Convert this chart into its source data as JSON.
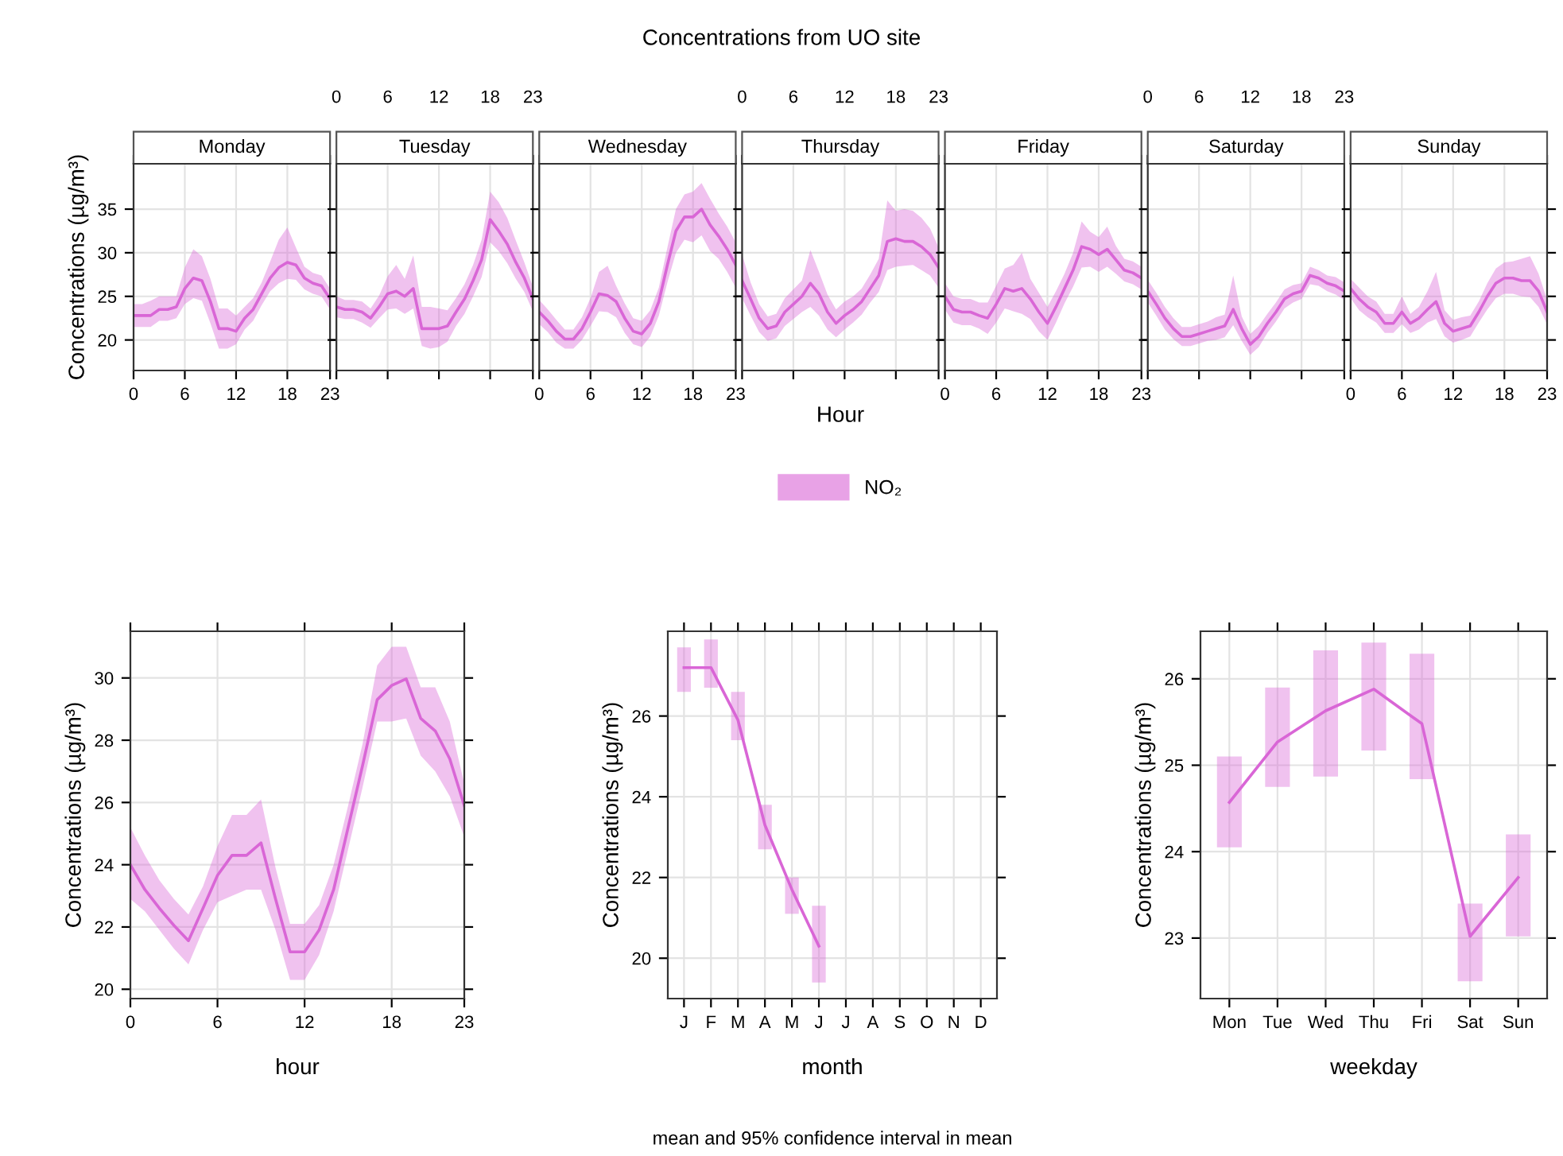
{
  "chart_data": [
    {
      "type": "line",
      "title": "Monday",
      "ylabel": "Concentrations (µg/m³)",
      "xlim": [
        0,
        23
      ],
      "xticks": [
        0,
        6,
        12,
        18,
        23
      ],
      "ylim": [
        16.5,
        40.2
      ],
      "yticks": [
        20,
        25,
        30,
        35
      ],
      "grid": true,
      "x": [
        0,
        1,
        2,
        3,
        4,
        5,
        6,
        7,
        8,
        9,
        10,
        11,
        12,
        13,
        14,
        15,
        16,
        17,
        18,
        19,
        20,
        21,
        22,
        23
      ],
      "series": [
        {
          "color": "#d966d6",
          "values": [
            22.8,
            22.8,
            22.8,
            23.5,
            23.5,
            23.8,
            25.9,
            27.1,
            26.8,
            24.4,
            21.3,
            21.3,
            21.0,
            22.5,
            23.5,
            25.3,
            27.1,
            28.3,
            28.9,
            28.6,
            27.1,
            26.5,
            26.2,
            24.7
          ],
          "lower": [
            21.5,
            21.5,
            21.5,
            22.2,
            22.2,
            22.5,
            24.1,
            24.8,
            24.5,
            21.9,
            19.0,
            19.0,
            19.5,
            21.2,
            22.2,
            24.0,
            25.6,
            26.5,
            27.0,
            26.9,
            25.8,
            25.3,
            25.0,
            23.5
          ],
          "upper": [
            24.1,
            24.1,
            24.5,
            25.0,
            25.0,
            25.0,
            28.3,
            30.4,
            29.6,
            27.0,
            23.6,
            23.6,
            22.8,
            23.8,
            24.8,
            26.6,
            29.0,
            31.5,
            32.9,
            30.6,
            28.4,
            27.7,
            27.4,
            25.9
          ]
        }
      ]
    },
    {
      "type": "line",
      "title": "Tuesday",
      "xlim": [
        0,
        23
      ],
      "xticks": [
        0,
        6,
        12,
        18,
        23
      ],
      "x2lim": [
        0,
        23
      ],
      "x2ticks": [
        0,
        6,
        12,
        18,
        23
      ],
      "tick_labels": false,
      "ylim": [
        16.5,
        40.2
      ],
      "yticks": [
        20,
        25,
        30,
        35
      ],
      "grid": true,
      "x": [
        0,
        1,
        2,
        3,
        4,
        5,
        6,
        7,
        8,
        9,
        10,
        11,
        12,
        13,
        14,
        15,
        16,
        17,
        18,
        19,
        20,
        21,
        22,
        23
      ],
      "series": [
        {
          "color": "#d966d6",
          "values": [
            23.8,
            23.5,
            23.5,
            23.2,
            22.5,
            23.8,
            25.3,
            25.6,
            25.0,
            25.9,
            21.3,
            21.3,
            21.3,
            21.6,
            23.2,
            24.7,
            26.8,
            29.2,
            33.8,
            32.5,
            31.0,
            28.9,
            27.1,
            24.7
          ],
          "lower": [
            22.6,
            22.4,
            22.4,
            22.0,
            21.4,
            22.5,
            23.5,
            23.6,
            23.0,
            23.6,
            19.3,
            19.0,
            19.2,
            19.8,
            21.6,
            23.0,
            25.0,
            27.2,
            31.2,
            30.2,
            28.8,
            27.0,
            25.5,
            23.3
          ],
          "upper": [
            25.0,
            24.6,
            24.6,
            24.4,
            23.6,
            25.1,
            27.3,
            28.6,
            27.0,
            29.7,
            23.8,
            23.8,
            23.6,
            23.4,
            24.8,
            26.4,
            28.6,
            31.5,
            37.0,
            35.8,
            34.0,
            31.4,
            28.9,
            26.1
          ]
        }
      ]
    },
    {
      "type": "line",
      "title": "Wednesday",
      "xlim": [
        0,
        23
      ],
      "xticks": [
        0,
        6,
        12,
        18,
        23
      ],
      "tick_labels": "x",
      "ylim": [
        16.5,
        40.2
      ],
      "yticks": [
        20,
        25,
        30,
        35
      ],
      "grid": true,
      "x": [
        0,
        1,
        2,
        3,
        4,
        5,
        6,
        7,
        8,
        9,
        10,
        11,
        12,
        13,
        14,
        15,
        16,
        17,
        18,
        19,
        20,
        21,
        22,
        23
      ],
      "series": [
        {
          "color": "#d966d6",
          "values": [
            23.2,
            22.2,
            21.0,
            20.1,
            20.1,
            21.3,
            23.2,
            25.3,
            25.1,
            24.4,
            22.5,
            21.0,
            20.7,
            21.9,
            24.4,
            28.6,
            32.5,
            34.1,
            34.1,
            35.0,
            33.2,
            31.9,
            30.4,
            28.6
          ],
          "lower": [
            21.8,
            20.9,
            19.7,
            19.0,
            19.0,
            20.0,
            21.6,
            23.3,
            23.2,
            22.6,
            20.8,
            19.5,
            19.2,
            20.4,
            22.8,
            26.6,
            30.0,
            31.5,
            31.2,
            32.0,
            30.2,
            29.3,
            27.8,
            26.0
          ],
          "upper": [
            24.6,
            23.5,
            22.3,
            21.2,
            21.2,
            22.6,
            24.8,
            27.8,
            28.5,
            26.2,
            24.2,
            22.5,
            22.2,
            23.4,
            26.0,
            30.6,
            35.0,
            36.7,
            37.0,
            38.0,
            36.2,
            34.5,
            33.0,
            31.2
          ]
        }
      ]
    },
    {
      "type": "line",
      "title": "Thursday",
      "xlabel": "Hour",
      "legend": "bottom",
      "annotations": [
        "Concentrations from UO site"
      ],
      "xlim": [
        0,
        23
      ],
      "xticks": [
        0,
        6,
        12,
        18,
        23
      ],
      "x2lim": [
        0,
        23
      ],
      "x2ticks": [
        0,
        6,
        12,
        18,
        23
      ],
      "tick_labels": false,
      "ylim": [
        16.5,
        40.2
      ],
      "yticks": [
        20,
        25,
        30,
        35
      ],
      "grid": true,
      "x": [
        0,
        1,
        2,
        3,
        4,
        5,
        6,
        7,
        8,
        9,
        10,
        11,
        12,
        13,
        14,
        15,
        16,
        17,
        18,
        19,
        20,
        21,
        22,
        23
      ],
      "series": [
        {
          "name": "NO₂",
          "color": "#d966d6",
          "values": [
            26.8,
            24.7,
            22.5,
            21.3,
            21.6,
            23.2,
            24.1,
            25.0,
            26.5,
            25.3,
            23.2,
            21.9,
            22.8,
            23.5,
            24.4,
            25.9,
            27.4,
            31.3,
            31.6,
            31.3,
            31.3,
            30.7,
            29.8,
            28.3
          ],
          "lower": [
            24.8,
            22.8,
            20.9,
            19.9,
            20.2,
            21.6,
            22.4,
            23.2,
            23.8,
            22.8,
            21.2,
            20.3,
            21.2,
            22.0,
            22.9,
            24.3,
            25.5,
            28.0,
            28.4,
            28.5,
            28.6,
            28.0,
            27.4,
            26.0
          ],
          "upper": [
            29.8,
            26.6,
            24.1,
            22.7,
            23.0,
            24.8,
            25.8,
            26.8,
            30.3,
            27.8,
            25.2,
            23.5,
            24.4,
            25.0,
            25.9,
            27.5,
            29.3,
            36.0,
            34.8,
            35.0,
            34.8,
            34.0,
            32.8,
            30.6
          ]
        }
      ]
    },
    {
      "type": "line",
      "title": "Friday",
      "xlim": [
        0,
        23
      ],
      "xticks": [
        0,
        6,
        12,
        18,
        23
      ],
      "tick_labels": "x",
      "ylim": [
        16.5,
        40.2
      ],
      "yticks": [
        20,
        25,
        30,
        35
      ],
      "grid": true,
      "x": [
        0,
        1,
        2,
        3,
        4,
        5,
        6,
        7,
        8,
        9,
        10,
        11,
        12,
        13,
        14,
        15,
        16,
        17,
        18,
        19,
        20,
        21,
        22,
        23
      ],
      "series": [
        {
          "color": "#d966d6",
          "values": [
            25.0,
            23.5,
            23.2,
            23.2,
            22.8,
            22.5,
            24.1,
            25.9,
            25.6,
            25.9,
            24.7,
            23.2,
            21.9,
            23.8,
            25.9,
            28.0,
            30.7,
            30.4,
            29.8,
            30.4,
            29.2,
            28.0,
            27.7,
            27.1
          ],
          "lower": [
            23.5,
            22.0,
            21.7,
            21.7,
            21.3,
            20.7,
            22.0,
            23.6,
            23.3,
            23.0,
            22.4,
            21.0,
            20.0,
            22.0,
            24.2,
            26.1,
            28.3,
            28.4,
            27.8,
            28.4,
            27.6,
            26.7,
            26.4,
            25.8
          ],
          "upper": [
            26.5,
            25.0,
            24.7,
            24.7,
            24.3,
            24.3,
            26.2,
            28.2,
            28.6,
            30.0,
            27.0,
            25.4,
            23.8,
            25.6,
            27.6,
            30.0,
            33.6,
            32.4,
            31.8,
            33.0,
            30.8,
            29.3,
            29.0,
            28.4
          ]
        }
      ]
    },
    {
      "type": "line",
      "title": "Saturday",
      "xlim": [
        0,
        23
      ],
      "xticks": [
        0,
        6,
        12,
        18,
        23
      ],
      "x2lim": [
        0,
        23
      ],
      "x2ticks": [
        0,
        6,
        12,
        18,
        23
      ],
      "tick_labels": false,
      "ylim": [
        16.5,
        40.2
      ],
      "yticks": [
        20,
        25,
        30,
        35
      ],
      "grid": true,
      "x": [
        0,
        1,
        2,
        3,
        4,
        5,
        6,
        7,
        8,
        9,
        10,
        11,
        12,
        13,
        14,
        15,
        16,
        17,
        18,
        19,
        20,
        21,
        22,
        23
      ],
      "series": [
        {
          "color": "#d966d6",
          "values": [
            25.6,
            24.1,
            22.5,
            21.3,
            20.4,
            20.4,
            20.7,
            21.0,
            21.3,
            21.6,
            23.5,
            21.3,
            19.5,
            20.4,
            21.9,
            23.2,
            24.7,
            25.3,
            25.6,
            27.4,
            27.1,
            26.5,
            26.2,
            25.6
          ],
          "lower": [
            24.3,
            22.8,
            21.2,
            20.1,
            19.3,
            19.3,
            19.6,
            19.9,
            20.0,
            20.3,
            21.7,
            19.9,
            18.3,
            19.2,
            20.8,
            22.1,
            23.6,
            24.3,
            24.7,
            26.4,
            26.2,
            25.6,
            25.2,
            24.6
          ],
          "upper": [
            26.9,
            25.4,
            23.8,
            22.5,
            21.5,
            21.5,
            21.8,
            22.1,
            22.6,
            22.9,
            27.4,
            22.7,
            20.7,
            21.6,
            23.0,
            24.3,
            25.8,
            26.3,
            26.5,
            28.4,
            28.0,
            27.4,
            27.2,
            26.6
          ]
        }
      ]
    },
    {
      "type": "line",
      "title": "Sunday",
      "xlim": [
        0,
        23
      ],
      "xticks": [
        0,
        6,
        12,
        18,
        23
      ],
      "tick_labels": "x",
      "ylim": [
        16.5,
        40.2
      ],
      "yticks": [
        20,
        25,
        30,
        35
      ],
      "grid": true,
      "x": [
        0,
        1,
        2,
        3,
        4,
        5,
        6,
        7,
        8,
        9,
        10,
        11,
        12,
        13,
        14,
        15,
        16,
        17,
        18,
        19,
        20,
        21,
        22,
        23
      ],
      "series": [
        {
          "color": "#d966d6",
          "values": [
            25.9,
            24.7,
            23.8,
            23.2,
            21.9,
            21.9,
            23.2,
            21.9,
            22.5,
            23.5,
            24.4,
            21.9,
            21.0,
            21.3,
            21.6,
            23.2,
            25.0,
            26.5,
            27.1,
            27.1,
            26.8,
            26.8,
            25.6,
            23.2
          ],
          "lower": [
            24.8,
            23.4,
            22.6,
            22.0,
            20.8,
            20.8,
            21.8,
            20.8,
            21.2,
            22.0,
            22.4,
            20.4,
            19.7,
            20.0,
            20.4,
            22.0,
            23.5,
            24.8,
            25.3,
            25.3,
            25.0,
            24.9,
            23.8,
            21.8
          ],
          "upper": [
            27.0,
            26.0,
            25.0,
            24.4,
            23.0,
            23.0,
            25.0,
            23.0,
            23.8,
            25.6,
            27.8,
            23.4,
            22.3,
            22.6,
            22.8,
            24.4,
            26.5,
            28.2,
            28.9,
            29.0,
            29.3,
            29.6,
            27.6,
            24.6
          ]
        }
      ]
    },
    {
      "type": "line",
      "xlabel": "hour",
      "ylabel": "Concentrations (µg/m³)",
      "xlim": [
        0,
        23
      ],
      "xticks": [
        0,
        6,
        12,
        18,
        23
      ],
      "ylim": [
        19.7,
        31.5
      ],
      "yticks": [
        20,
        22,
        24,
        26,
        28,
        30
      ],
      "grid": true,
      "x": [
        0,
        1,
        2,
        3,
        4,
        5,
        6,
        7,
        8,
        9,
        10,
        11,
        12,
        13,
        14,
        15,
        16,
        17,
        18,
        19,
        20,
        21,
        22,
        23
      ],
      "series": [
        {
          "color": "#d966d6",
          "values": [
            24.0,
            23.2,
            22.6,
            22.05,
            21.56,
            22.6,
            23.66,
            24.3,
            24.3,
            24.7,
            22.9,
            21.2,
            21.2,
            21.9,
            23.2,
            25.2,
            27.2,
            29.3,
            29.76,
            29.97,
            28.7,
            28.3,
            27.4,
            25.9
          ],
          "lower": [
            22.9,
            22.5,
            21.9,
            21.3,
            20.8,
            21.9,
            22.8,
            23.0,
            23.2,
            23.2,
            21.9,
            20.3,
            20.3,
            21.1,
            22.5,
            24.5,
            26.5,
            28.6,
            28.6,
            28.7,
            27.5,
            27.0,
            26.2,
            24.9
          ],
          "upper": [
            25.2,
            24.3,
            23.5,
            22.9,
            22.4,
            23.3,
            24.6,
            25.6,
            25.6,
            26.1,
            23.9,
            22.1,
            22.1,
            22.7,
            24.0,
            25.9,
            27.9,
            30.4,
            31.0,
            31.0,
            29.7,
            29.7,
            28.6,
            26.6
          ]
        }
      ]
    },
    {
      "type": "line",
      "xlabel": "month",
      "ylabel": "Concentrations (µg/m³)",
      "annotations": [
        "mean and 95% confidence interval in mean"
      ],
      "categories": [
        "J",
        "F",
        "M",
        "A",
        "M",
        "J",
        "J",
        "A",
        "S",
        "O",
        "N",
        "D"
      ],
      "ylim": [
        19.0,
        28.1
      ],
      "yticks": [
        20,
        22,
        24,
        26
      ],
      "grid": true,
      "series": [
        {
          "color": "#d966d6",
          "values": [
            27.2,
            27.2,
            25.9,
            23.3,
            21.7,
            20.3,
            null,
            null,
            null,
            null,
            null,
            null
          ],
          "errors": [
            [
              26.6,
              27.7
            ],
            [
              26.7,
              27.9
            ],
            [
              25.4,
              26.6
            ],
            [
              22.7,
              23.8
            ],
            [
              21.1,
              22.0
            ],
            [
              19.4,
              21.3
            ],
            null,
            null,
            null,
            null,
            null,
            null
          ]
        }
      ]
    },
    {
      "type": "line",
      "xlabel": "weekday",
      "ylabel": "Concentrations (µg/m³)",
      "categories": [
        "Mon",
        "Tue",
        "Wed",
        "Thu",
        "Fri",
        "Sat",
        "Sun"
      ],
      "ylim": [
        22.3,
        26.55
      ],
      "yticks": [
        23,
        24,
        25,
        26
      ],
      "grid": true,
      "series": [
        {
          "color": "#d966d6",
          "values": [
            24.57,
            25.27,
            25.63,
            25.88,
            25.48,
            23.02,
            23.7
          ],
          "errors": [
            [
              24.05,
              25.1
            ],
            [
              24.75,
              25.9
            ],
            [
              24.87,
              26.33
            ],
            [
              25.17,
              26.42
            ],
            [
              24.84,
              26.29
            ],
            [
              22.5,
              23.4
            ],
            [
              23.02,
              24.2
            ]
          ]
        }
      ]
    }
  ]
}
